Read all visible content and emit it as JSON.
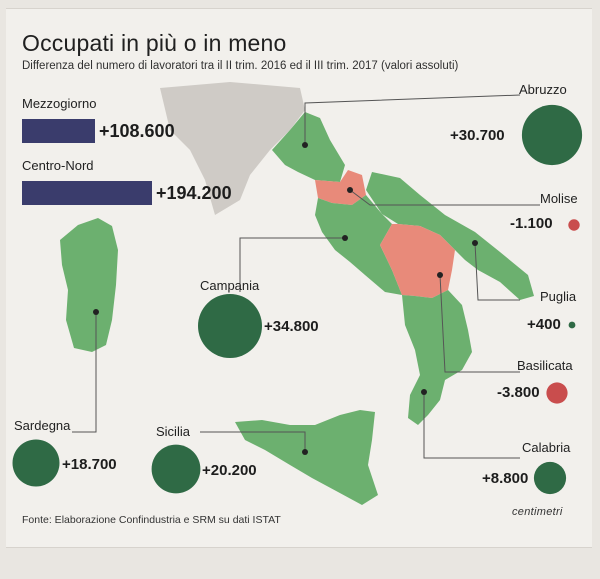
{
  "title": "Occupati in più o in meno",
  "subtitle": "Differenza del numero di lavoratori tra il II trim. 2016 ed il III trim. 2017 (valori assoluti)",
  "source": "Fonte: Elaborazione Confindustria e SRM su dati ISTAT",
  "logo": "centimetri",
  "colors": {
    "bars": "#3a3c6c",
    "positive": "#2f6a45",
    "negative": "#c94d4d",
    "map_green": "#6cb06f",
    "map_red": "#e88a7a"
  },
  "chart_data": [
    {
      "type": "bar",
      "orientation": "horizontal",
      "categories": [
        "Mezzogiorno",
        "Centro-Nord"
      ],
      "values": [
        108600,
        194200
      ],
      "value_labels": [
        "+108.600",
        "+194.200"
      ]
    },
    {
      "type": "bubble-map",
      "regions": [
        {
          "name": "Abruzzo",
          "value": 30700,
          "label": "+30.700"
        },
        {
          "name": "Molise",
          "value": -1100,
          "label": "-1.100"
        },
        {
          "name": "Puglia",
          "value": 400,
          "label": "+400"
        },
        {
          "name": "Basilicata",
          "value": -3800,
          "label": "-3.800"
        },
        {
          "name": "Calabria",
          "value": 8800,
          "label": "+8.800"
        },
        {
          "name": "Campania",
          "value": 34800,
          "label": "+34.800"
        },
        {
          "name": "Sardegna",
          "value": 18700,
          "label": "+18.700"
        },
        {
          "name": "Sicilia",
          "value": 20200,
          "label": "+20.200"
        }
      ]
    }
  ]
}
